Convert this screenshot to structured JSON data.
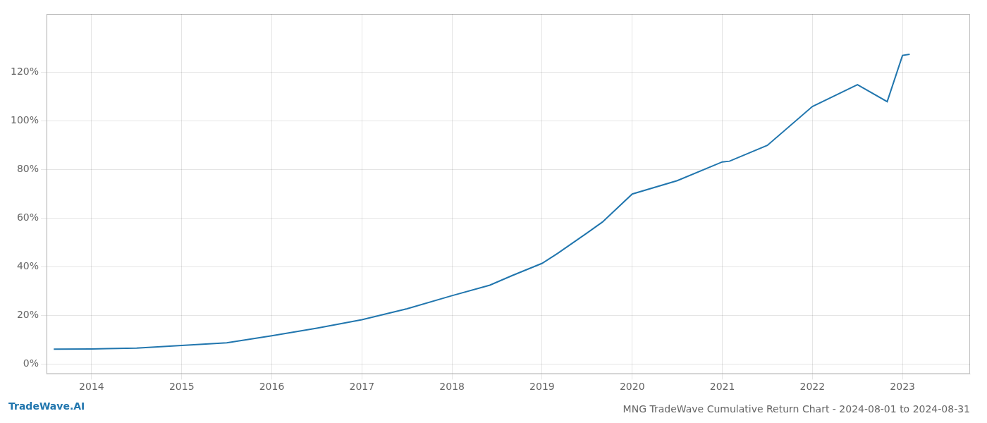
{
  "chart_data": {
    "type": "line",
    "title": "MNG TradeWave Cumulative Return Chart - 2024-08-01 to 2024-08-31",
    "annotations": [
      "TradeWave.AI"
    ],
    "x": [
      2013.58,
      2014.0,
      2014.17,
      2014.5,
      2015.0,
      2015.5,
      2016.0,
      2016.5,
      2017.0,
      2017.5,
      2018.0,
      2018.42,
      2018.67,
      2019.0,
      2019.17,
      2019.5,
      2019.67,
      2020.0,
      2020.5,
      2021.0,
      2021.08,
      2021.5,
      2022.0,
      2022.5,
      2022.83,
      2023.0,
      2023.08
    ],
    "values": [
      0.062,
      0.063,
      0.064,
      0.066,
      0.077,
      0.088,
      0.117,
      0.148,
      0.183,
      0.228,
      0.282,
      0.325,
      0.365,
      0.415,
      0.455,
      0.54,
      0.585,
      0.7,
      0.755,
      0.832,
      0.835,
      0.9,
      1.06,
      1.15,
      1.08,
      1.27,
      1.275
    ],
    "color": "#2176ae",
    "xlim": [
      2013.5,
      2023.75
    ],
    "ylim": [
      -0.04,
      1.44
    ],
    "xticks": [
      2014,
      2015,
      2016,
      2017,
      2018,
      2019,
      2020,
      2021,
      2022,
      2023
    ],
    "yticks": [
      {
        "value": 0,
        "label": "0%"
      },
      {
        "value": 0.2,
        "label": "20%"
      },
      {
        "value": 0.4,
        "label": "40%"
      },
      {
        "value": 0.6,
        "label": "60%"
      },
      {
        "value": 0.8,
        "label": "80%"
      },
      {
        "value": 1.0,
        "label": "100%"
      },
      {
        "value": 1.2,
        "label": "120%"
      }
    ],
    "grid": true
  }
}
